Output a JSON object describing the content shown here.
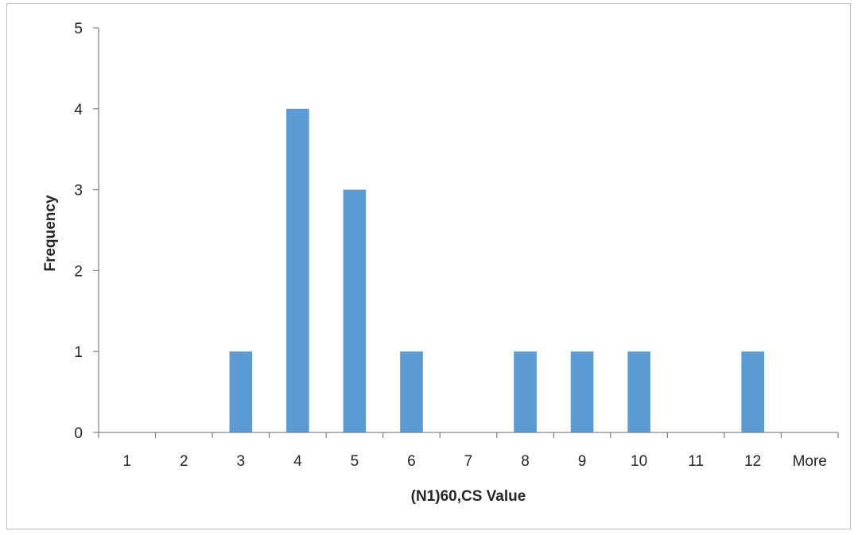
{
  "chart_data": {
    "type": "bar",
    "title": "",
    "xlabel": "(N1)60,CS Value",
    "ylabel": "Frequency",
    "categories": [
      "1",
      "2",
      "3",
      "4",
      "5",
      "6",
      "7",
      "8",
      "9",
      "10",
      "11",
      "12",
      "More"
    ],
    "values": [
      0,
      0,
      1,
      4,
      3,
      1,
      0,
      1,
      1,
      1,
      0,
      1,
      0
    ],
    "ylim": [
      0,
      5
    ],
    "yticks": [
      "0",
      "1",
      "2",
      "3",
      "4",
      "5"
    ],
    "grid": false,
    "legend": "none",
    "bar_color": "#5b9bd5"
  }
}
